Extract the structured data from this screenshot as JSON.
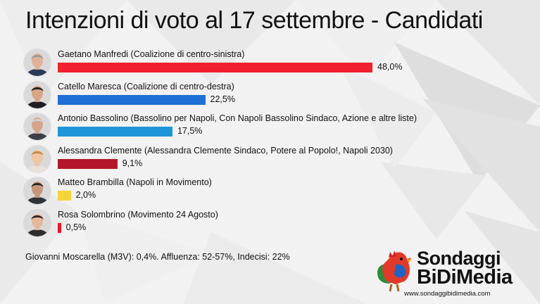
{
  "chart_data": {
    "type": "bar",
    "title": "Intenzioni di voto al 17 settembre - Candidati",
    "categories": [
      "Gaetano Manfredi (Coalizione di centro-sinistra)",
      "Catello Maresca (Coalizione di centro-destra)",
      "Antonio Bassolino (Bassolino per Napoli, Con Napoli Bassolino Sindaco, Azione e altre liste)",
      "Alessandra Clemente (Alessandra Clemente Sindaco, Potere al Popolo!, Napoli 2030)",
      "Matteo Brambilla (Napoli in Movimento)",
      "Rosa Solombrino (Movimento 24 Agosto)"
    ],
    "values": [
      48.0,
      22.5,
      17.5,
      9.1,
      2.0,
      0.5
    ],
    "value_labels": [
      "48,0%",
      "22,5%",
      "17,5%",
      "9,1%",
      "2,0%",
      "0,5%"
    ],
    "colors": [
      "#f0202e",
      "#1e6fd6",
      "#1f96d9",
      "#b5152b",
      "#f5d43b",
      "#e8172a"
    ],
    "orientation": "horizontal",
    "xlim": [
      0,
      48.0
    ],
    "note": "Giovanni Moscarella (M3V): 0,4%. Affluenza: 52-57%, Indecisi: 22%"
  },
  "avatars": [
    {
      "skin": "#e0b196",
      "hair": "#9a9a9a",
      "shirt": "#2b3a55"
    },
    {
      "skin": "#d9a585",
      "hair": "#2a2320",
      "shirt": "#1d1d24"
    },
    {
      "skin": "#d6a48a",
      "hair": "#cfcfcf",
      "shirt": "#3a3f48"
    },
    {
      "skin": "#f0c4a4",
      "hair": "#c28a4a",
      "shirt": "#e8e2d8"
    },
    {
      "skin": "#c99579",
      "hair": "#2c2624",
      "shirt": "#2e3138"
    },
    {
      "skin": "#e5b89b",
      "hair": "#3a2418",
      "shirt": "#2d2d2d"
    }
  ],
  "logo": {
    "line1": "Sondaggi",
    "line2": "BiDiMedia",
    "url": "www.sondaggibidimedia.com"
  }
}
